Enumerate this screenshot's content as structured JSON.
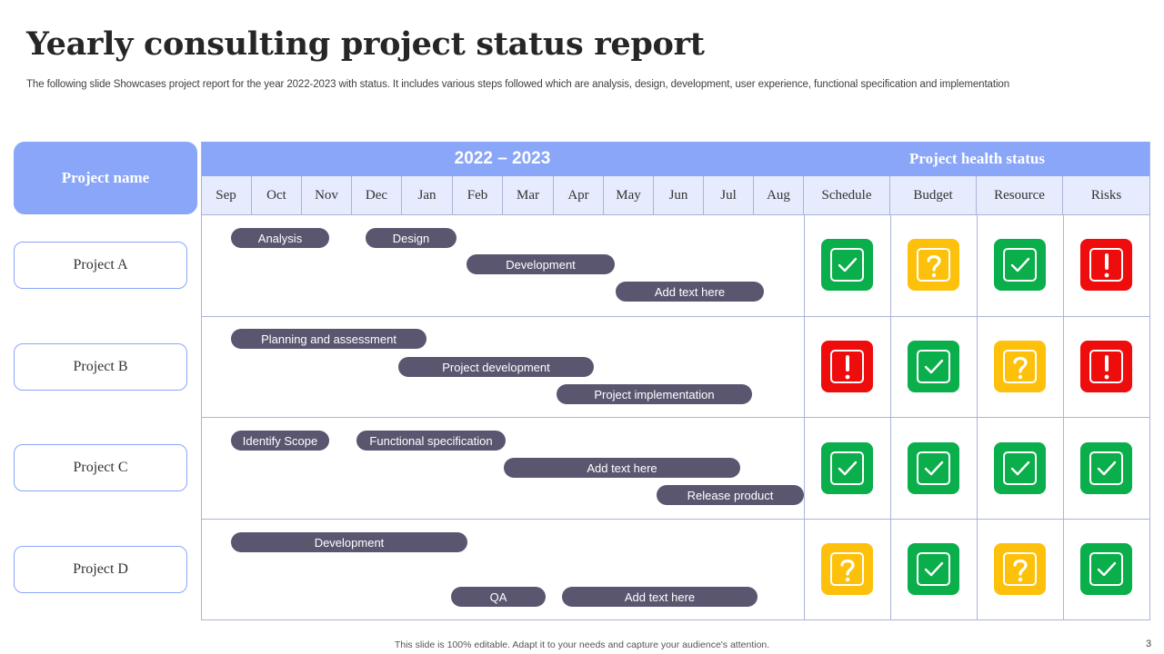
{
  "title": "Yearly consulting project status report",
  "subtitle": "The following slide Showcases project report for the year 2022-2023 with status. It includes various steps followed which are analysis, design, development, user experience, functional specification and implementation",
  "project_name_header": "Project name",
  "year_header": "2022 – 2023",
  "health_header": "Project health status",
  "months": [
    "Sep",
    "Oct",
    "Nov",
    "Dec",
    "Jan",
    "Feb",
    "Mar",
    "Apr",
    "May",
    "Jun",
    "Jul",
    "Aug"
  ],
  "health_columns": [
    "Schedule",
    "Budget",
    "Resource",
    "Risks"
  ],
  "projects": [
    {
      "name": "Project A",
      "tasks": [
        "Analysis",
        "Design",
        "Development",
        "Add text here"
      ],
      "health": [
        "ok",
        "warning",
        "ok",
        "critical"
      ]
    },
    {
      "name": "Project B",
      "tasks": [
        "Planning  and assessment",
        "Project development",
        "Project implementation"
      ],
      "health": [
        "critical",
        "ok",
        "warning",
        "critical"
      ]
    },
    {
      "name": "Project C",
      "tasks": [
        "Identify Scope",
        "Functional specification",
        "Add text here",
        "Release product"
      ],
      "health": [
        "ok",
        "ok",
        "ok",
        "ok"
      ]
    },
    {
      "name": "Project D",
      "tasks": [
        "Development",
        "QA",
        "Add text here"
      ],
      "health": [
        "warning",
        "ok",
        "warning",
        "ok"
      ]
    }
  ],
  "status_colors": {
    "ok": "#0aae4b",
    "warning": "#fdc10c",
    "critical": "#ee0c0c"
  },
  "footer": "This slide is 100% editable. Adapt it to your needs and capture your audience's attention.",
  "page_number": "3"
}
